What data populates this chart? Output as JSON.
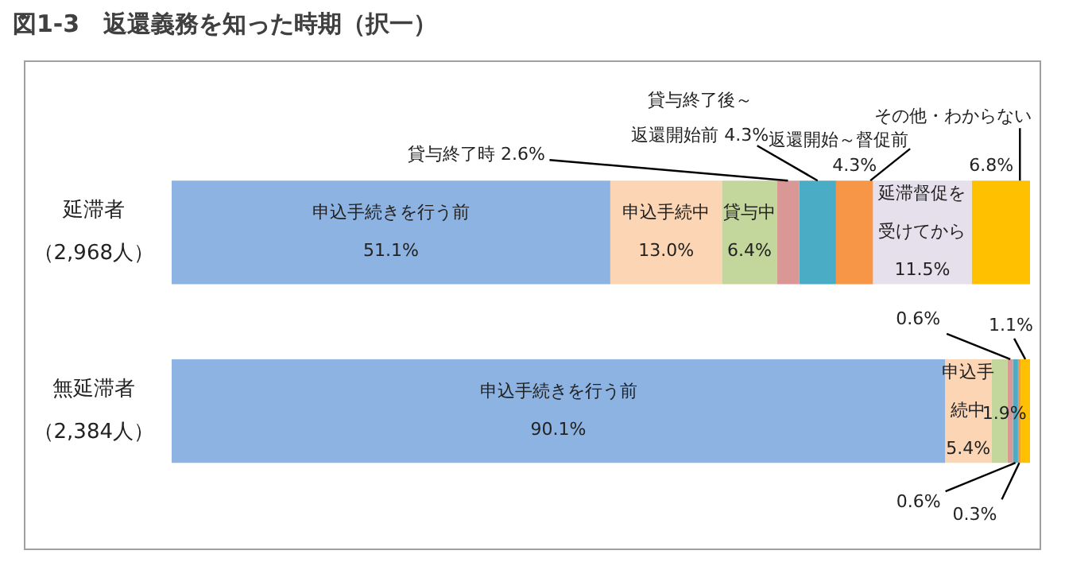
{
  "chart_data": {
    "type": "bar",
    "title": "図1-3　返還義務を知った時期（択一）",
    "orientation": "horizontal",
    "stacked": true,
    "tick_labels": "y",
    "xlim": [
      0,
      100
    ],
    "categories": [
      "延滞者（2,968人）",
      "無延滞者（2,384人）"
    ],
    "series": [
      {
        "name": "申込手続きを行う前",
        "color": "#8db3e2",
        "values": [
          51.1,
          90.1
        ],
        "value_labels": [
          "51.1%",
          "90.1%"
        ]
      },
      {
        "name": "申込手続中",
        "color": "#fcd5b5",
        "values": [
          13.0,
          5.4
        ],
        "value_labels": [
          "13.0%",
          "5.4%"
        ]
      },
      {
        "name": "貸与中",
        "color": "#c3d69b",
        "values": [
          6.4,
          1.9
        ],
        "value_labels": [
          "6.4%",
          "1.9%"
        ]
      },
      {
        "name": "貸与終了時",
        "color": "#d99795",
        "values": [
          2.6,
          0.6
        ],
        "value_labels": [
          "2.6%",
          "0.6%"
        ]
      },
      {
        "name": "貸与終了後～返還開始前",
        "color": "#4bacc6",
        "values": [
          4.3,
          0.6
        ],
        "value_labels": [
          "4.3%",
          "0.6%"
        ]
      },
      {
        "name": "返還開始～督促前",
        "color": "#f79646",
        "values": [
          4.3,
          0.3
        ],
        "value_labels": [
          "4.3%",
          "0.3%"
        ]
      },
      {
        "name": "延滞督促を受けてから",
        "color": "#e6e0ec",
        "values": [
          11.5,
          null
        ],
        "value_labels": [
          "11.5%",
          null
        ]
      },
      {
        "name": "その他・わからない",
        "color": "#ffc000",
        "values": [
          6.8,
          1.1
        ],
        "value_labels": [
          "6.8%",
          "1.1%"
        ]
      }
    ]
  }
}
